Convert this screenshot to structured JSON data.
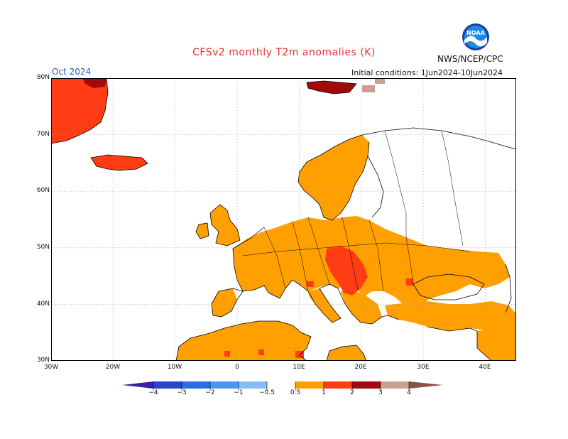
{
  "header": {
    "title": "CFSv2 monthly T2m anomalies (K)",
    "month": "Oct 2024",
    "agency": "NWS/NCEP/CPC",
    "initial_conditions": "Initial conditions: 1Jun2024-10Jun2024",
    "logo_text": "NOAA"
  },
  "axes": {
    "lat_labels": [
      "80N",
      "70N",
      "60N",
      "50N",
      "40N",
      "30N"
    ],
    "lon_labels": [
      "30W",
      "20W",
      "10W",
      "0",
      "10E",
      "20E",
      "30E",
      "40E"
    ]
  },
  "colorbar": {
    "labels": [
      "−4",
      "−3",
      "−2",
      "−1",
      "−0.5",
      "0.5",
      "1",
      "2",
      "3",
      "4"
    ],
    "colors": [
      "#3a1fa8",
      "#2846c8",
      "#2a6fe0",
      "#4b97f0",
      "#86bdf4",
      "#ffffff",
      "#ffa000",
      "#ff3c14",
      "#a00a0a",
      "#c8a096",
      "#8c5046"
    ]
  },
  "map_colors": {
    "ocean": "#ffffff",
    "anomaly_05_1": "#ffa000",
    "anomaly_1_2": "#ff3c14",
    "anomaly_2_3": "#a00a0a",
    "anomaly_3_4": "#c8a096",
    "border": "#000000",
    "grid": "#9a9a9a"
  }
}
